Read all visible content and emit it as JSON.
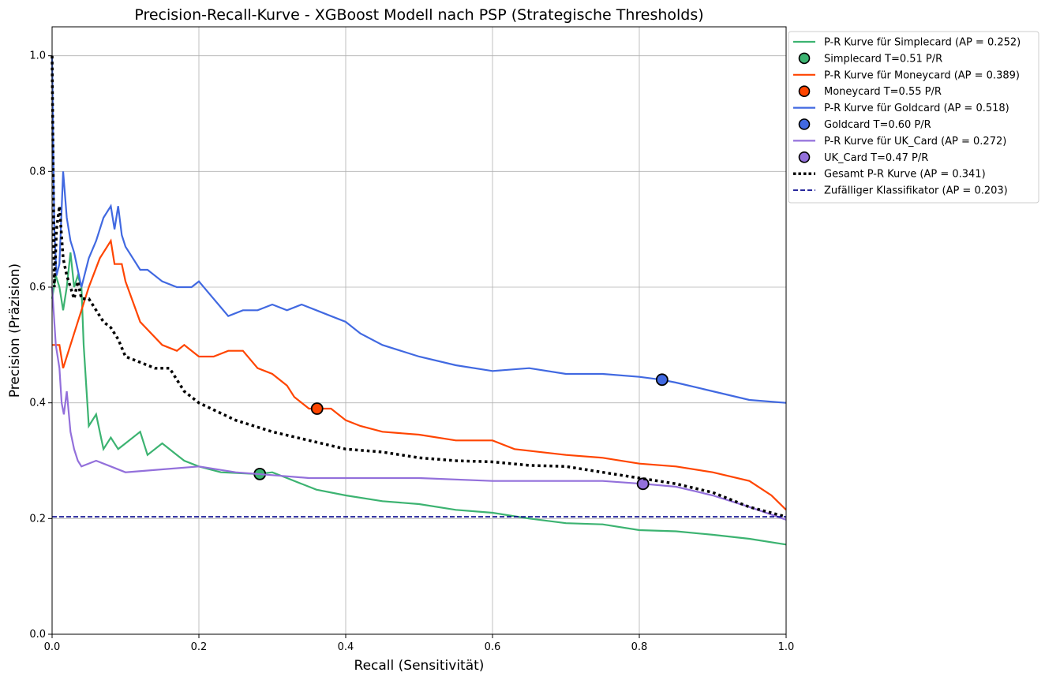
{
  "chart_data": {
    "type": "line",
    "title": "Precision-Recall-Kurve - XGBoost Modell nach PSP (Strategische Thresholds)",
    "xlabel": "Recall (Sensitivität)",
    "ylabel": "Precision (Präzision)",
    "xlim": [
      0.0,
      1.0
    ],
    "ylim": [
      0.0,
      1.05
    ],
    "xticks": [
      "0.0",
      "0.2",
      "0.4",
      "0.6",
      "0.8",
      "1.0"
    ],
    "yticks": [
      "0.0",
      "0.2",
      "0.4",
      "0.6",
      "0.8",
      "1.0"
    ],
    "grid": true,
    "legend_position": "outside-top-right",
    "series": [
      {
        "name": "P-R Kurve für Simplecard (AP = 0.252)",
        "color": "#3cb371",
        "style": "solid",
        "points": [
          [
            0.0,
            0.58
          ],
          [
            0.005,
            0.62
          ],
          [
            0.01,
            0.6
          ],
          [
            0.015,
            0.56
          ],
          [
            0.02,
            0.6
          ],
          [
            0.025,
            0.66
          ],
          [
            0.03,
            0.6
          ],
          [
            0.035,
            0.62
          ],
          [
            0.04,
            0.6
          ],
          [
            0.043,
            0.5
          ],
          [
            0.047,
            0.42
          ],
          [
            0.05,
            0.36
          ],
          [
            0.06,
            0.38
          ],
          [
            0.07,
            0.32
          ],
          [
            0.08,
            0.34
          ],
          [
            0.09,
            0.32
          ],
          [
            0.1,
            0.33
          ],
          [
            0.12,
            0.35
          ],
          [
            0.13,
            0.31
          ],
          [
            0.15,
            0.33
          ],
          [
            0.17,
            0.31
          ],
          [
            0.18,
            0.3
          ],
          [
            0.2,
            0.29
          ],
          [
            0.23,
            0.28
          ],
          [
            0.28,
            0.277
          ],
          [
            0.3,
            0.28
          ],
          [
            0.32,
            0.27
          ],
          [
            0.36,
            0.25
          ],
          [
            0.4,
            0.24
          ],
          [
            0.45,
            0.23
          ],
          [
            0.5,
            0.225
          ],
          [
            0.55,
            0.215
          ],
          [
            0.6,
            0.21
          ],
          [
            0.65,
            0.2
          ],
          [
            0.7,
            0.192
          ],
          [
            0.75,
            0.19
          ],
          [
            0.8,
            0.18
          ],
          [
            0.85,
            0.178
          ],
          [
            0.9,
            0.172
          ],
          [
            0.95,
            0.165
          ],
          [
            1.0,
            0.155
          ]
        ]
      },
      {
        "name": "Simplecard T=0.51 P/R",
        "color": "#3cb371",
        "style": "marker",
        "points": [
          [
            0.283,
            0.277
          ]
        ]
      },
      {
        "name": "P-R Kurve für Moneycard (AP = 0.389)",
        "color": "#ff4500",
        "style": "solid",
        "points": [
          [
            0.0,
            0.5
          ],
          [
            0.01,
            0.5
          ],
          [
            0.015,
            0.46
          ],
          [
            0.03,
            0.52
          ],
          [
            0.05,
            0.6
          ],
          [
            0.065,
            0.65
          ],
          [
            0.08,
            0.68
          ],
          [
            0.085,
            0.64
          ],
          [
            0.095,
            0.64
          ],
          [
            0.1,
            0.61
          ],
          [
            0.12,
            0.54
          ],
          [
            0.15,
            0.5
          ],
          [
            0.17,
            0.49
          ],
          [
            0.18,
            0.5
          ],
          [
            0.2,
            0.48
          ],
          [
            0.22,
            0.48
          ],
          [
            0.24,
            0.49
          ],
          [
            0.26,
            0.49
          ],
          [
            0.28,
            0.46
          ],
          [
            0.3,
            0.45
          ],
          [
            0.32,
            0.43
          ],
          [
            0.33,
            0.41
          ],
          [
            0.35,
            0.39
          ],
          [
            0.36,
            0.39
          ],
          [
            0.38,
            0.39
          ],
          [
            0.4,
            0.37
          ],
          [
            0.42,
            0.36
          ],
          [
            0.45,
            0.35
          ],
          [
            0.5,
            0.345
          ],
          [
            0.55,
            0.335
          ],
          [
            0.6,
            0.335
          ],
          [
            0.63,
            0.32
          ],
          [
            0.7,
            0.31
          ],
          [
            0.75,
            0.305
          ],
          [
            0.8,
            0.295
          ],
          [
            0.85,
            0.29
          ],
          [
            0.9,
            0.28
          ],
          [
            0.95,
            0.265
          ],
          [
            0.98,
            0.24
          ],
          [
            1.0,
            0.215
          ]
        ]
      },
      {
        "name": "Moneycard T=0.55 P/R",
        "color": "#ff4500",
        "style": "marker",
        "points": [
          [
            0.361,
            0.39
          ]
        ]
      },
      {
        "name": "P-R Kurve für Goldcard (AP = 0.518)",
        "color": "#4169e1",
        "style": "solid",
        "points": [
          [
            0.0,
            1.0
          ],
          [
            0.003,
            0.7
          ],
          [
            0.006,
            0.62
          ],
          [
            0.01,
            0.64
          ],
          [
            0.015,
            0.8
          ],
          [
            0.02,
            0.72
          ],
          [
            0.025,
            0.68
          ],
          [
            0.03,
            0.66
          ],
          [
            0.04,
            0.6
          ],
          [
            0.05,
            0.65
          ],
          [
            0.06,
            0.68
          ],
          [
            0.07,
            0.72
          ],
          [
            0.08,
            0.74
          ],
          [
            0.085,
            0.7
          ],
          [
            0.09,
            0.74
          ],
          [
            0.095,
            0.69
          ],
          [
            0.1,
            0.67
          ],
          [
            0.11,
            0.65
          ],
          [
            0.12,
            0.63
          ],
          [
            0.13,
            0.63
          ],
          [
            0.15,
            0.61
          ],
          [
            0.17,
            0.6
          ],
          [
            0.19,
            0.6
          ],
          [
            0.2,
            0.61
          ],
          [
            0.22,
            0.58
          ],
          [
            0.24,
            0.55
          ],
          [
            0.26,
            0.56
          ],
          [
            0.28,
            0.56
          ],
          [
            0.3,
            0.57
          ],
          [
            0.32,
            0.56
          ],
          [
            0.34,
            0.57
          ],
          [
            0.36,
            0.56
          ],
          [
            0.38,
            0.55
          ],
          [
            0.4,
            0.54
          ],
          [
            0.42,
            0.52
          ],
          [
            0.45,
            0.5
          ],
          [
            0.5,
            0.48
          ],
          [
            0.55,
            0.465
          ],
          [
            0.6,
            0.455
          ],
          [
            0.65,
            0.46
          ],
          [
            0.7,
            0.45
          ],
          [
            0.75,
            0.45
          ],
          [
            0.8,
            0.445
          ],
          [
            0.83,
            0.44
          ],
          [
            0.85,
            0.435
          ],
          [
            0.9,
            0.42
          ],
          [
            0.95,
            0.405
          ],
          [
            1.0,
            0.4
          ]
        ]
      },
      {
        "name": "Goldcard T=0.60 P/R",
        "color": "#4169e1",
        "style": "marker",
        "points": [
          [
            0.831,
            0.44
          ]
        ]
      },
      {
        "name": "P-R Kurve für UK_Card (AP = 0.272)",
        "color": "#9370db",
        "style": "solid",
        "points": [
          [
            0.0,
            0.6
          ],
          [
            0.005,
            0.5
          ],
          [
            0.01,
            0.46
          ],
          [
            0.013,
            0.4
          ],
          [
            0.016,
            0.38
          ],
          [
            0.02,
            0.42
          ],
          [
            0.025,
            0.35
          ],
          [
            0.03,
            0.32
          ],
          [
            0.035,
            0.3
          ],
          [
            0.04,
            0.29
          ],
          [
            0.06,
            0.3
          ],
          [
            0.08,
            0.29
          ],
          [
            0.1,
            0.28
          ],
          [
            0.15,
            0.285
          ],
          [
            0.2,
            0.29
          ],
          [
            0.25,
            0.28
          ],
          [
            0.3,
            0.275
          ],
          [
            0.35,
            0.27
          ],
          [
            0.4,
            0.27
          ],
          [
            0.5,
            0.27
          ],
          [
            0.6,
            0.265
          ],
          [
            0.7,
            0.265
          ],
          [
            0.75,
            0.265
          ],
          [
            0.805,
            0.26
          ],
          [
            0.85,
            0.255
          ],
          [
            0.9,
            0.24
          ],
          [
            0.95,
            0.22
          ],
          [
            1.0,
            0.198
          ]
        ]
      },
      {
        "name": "UK_Card T=0.47 P/R",
        "color": "#9370db",
        "style": "marker",
        "points": [
          [
            0.805,
            0.26
          ]
        ]
      },
      {
        "name": "Gesamt P-R Kurve (AP = 0.341)",
        "color": "#000000",
        "style": "dotted",
        "points": [
          [
            0.0,
            1.0
          ],
          [
            0.003,
            0.6
          ],
          [
            0.006,
            0.7
          ],
          [
            0.01,
            0.74
          ],
          [
            0.015,
            0.65
          ],
          [
            0.02,
            0.62
          ],
          [
            0.025,
            0.6
          ],
          [
            0.03,
            0.58
          ],
          [
            0.035,
            0.61
          ],
          [
            0.04,
            0.58
          ],
          [
            0.05,
            0.58
          ],
          [
            0.06,
            0.56
          ],
          [
            0.07,
            0.54
          ],
          [
            0.08,
            0.53
          ],
          [
            0.09,
            0.51
          ],
          [
            0.1,
            0.48
          ],
          [
            0.12,
            0.47
          ],
          [
            0.14,
            0.46
          ],
          [
            0.16,
            0.46
          ],
          [
            0.18,
            0.42
          ],
          [
            0.2,
            0.4
          ],
          [
            0.25,
            0.37
          ],
          [
            0.3,
            0.35
          ],
          [
            0.35,
            0.335
          ],
          [
            0.4,
            0.32
          ],
          [
            0.45,
            0.315
          ],
          [
            0.5,
            0.305
          ],
          [
            0.55,
            0.3
          ],
          [
            0.6,
            0.298
          ],
          [
            0.65,
            0.292
          ],
          [
            0.7,
            0.29
          ],
          [
            0.75,
            0.28
          ],
          [
            0.8,
            0.27
          ],
          [
            0.85,
            0.26
          ],
          [
            0.9,
            0.245
          ],
          [
            0.95,
            0.22
          ],
          [
            1.0,
            0.203
          ]
        ]
      },
      {
        "name": "Zufälliger Klassifikator (AP = 0.203)",
        "color": "#00008b",
        "style": "dashed",
        "points": [
          [
            0.0,
            0.203
          ],
          [
            1.0,
            0.203
          ]
        ]
      }
    ]
  }
}
